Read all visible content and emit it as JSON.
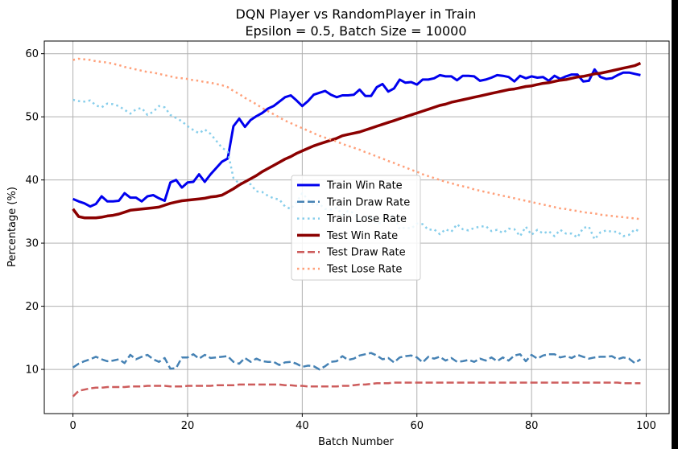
{
  "chart_data": {
    "type": "line",
    "title": "DQN Player vs RandomPlayer in Train",
    "subtitle": "Epsilon = 0.5, Batch Size = 10000",
    "xlabel": "Batch Number",
    "ylabel": "Percentage (%)",
    "xlim": [
      -5,
      104
    ],
    "ylim": [
      3,
      62
    ],
    "xticks": [
      0,
      20,
      40,
      60,
      80,
      100
    ],
    "yticks": [
      10,
      20,
      30,
      40,
      50,
      60
    ],
    "grid": true,
    "legend_position": "center",
    "x": [
      0,
      1,
      2,
      3,
      4,
      5,
      6,
      7,
      8,
      9,
      10,
      11,
      12,
      13,
      14,
      15,
      16,
      17,
      18,
      19,
      20,
      21,
      22,
      23,
      24,
      25,
      26,
      27,
      28,
      29,
      30,
      31,
      32,
      33,
      34,
      35,
      36,
      37,
      38,
      39,
      40,
      41,
      42,
      43,
      44,
      45,
      46,
      47,
      48,
      49,
      50,
      51,
      52,
      53,
      54,
      55,
      56,
      57,
      58,
      59,
      60,
      61,
      62,
      63,
      64,
      65,
      66,
      67,
      68,
      69,
      70,
      71,
      72,
      73,
      74,
      75,
      76,
      77,
      78,
      79,
      80,
      81,
      82,
      83,
      84,
      85,
      86,
      87,
      88,
      89,
      90,
      91,
      92,
      93,
      94,
      95,
      96,
      97,
      98,
      99
    ],
    "series": [
      {
        "name": "Train Win Rate",
        "color": "#0000ee",
        "style": "solid",
        "width": 3,
        "values": [
          37,
          36.6,
          36.3,
          35.8,
          36.2,
          37.4,
          36.6,
          36.6,
          36.7,
          37.9,
          37.2,
          37.2,
          36.6,
          37.4,
          37.6,
          37.1,
          36.7,
          39.6,
          40,
          38.8,
          39.6,
          39.7,
          40.9,
          39.7,
          40.9,
          41.9,
          42.9,
          43.4,
          48.5,
          49.7,
          48.4,
          49.5,
          50.1,
          50.6,
          51.3,
          51.7,
          52.4,
          53.1,
          53.4,
          52.6,
          51.7,
          52.5,
          53.5,
          53.8,
          54.1,
          53.5,
          53.1,
          53.4,
          53.4,
          53.5,
          54.3,
          53.3,
          53.3,
          54.7,
          55.2,
          54,
          54.5,
          55.9,
          55.4,
          55.5,
          55.1,
          55.9,
          55.9,
          56.1,
          56.6,
          56.4,
          56.4,
          55.8,
          56.5,
          56.5,
          56.4,
          55.7,
          55.9,
          56.2,
          56.6,
          56.5,
          56.3,
          55.6,
          56.5,
          56.1,
          56.4,
          56.2,
          56.3,
          55.7,
          56.5,
          56,
          56.4,
          56.7,
          56.7,
          55.6,
          55.7,
          57.5,
          56.3,
          56,
          56.1,
          56.6,
          57,
          57,
          56.8,
          56.6
        ]
      },
      {
        "name": "Train Draw Rate",
        "color": "#4682b4",
        "style": "dashed",
        "width": 2.5,
        "values": [
          10.3,
          10.9,
          11.3,
          11.6,
          12,
          11.6,
          11.3,
          11.4,
          11.6,
          11,
          12.3,
          11.6,
          12,
          12.3,
          11.6,
          11.2,
          11.8,
          10.1,
          10.2,
          11.9,
          11.9,
          12.4,
          11.7,
          12.3,
          11.8,
          11.9,
          12,
          12.1,
          11.2,
          10.9,
          11.8,
          11.2,
          11.7,
          11.3,
          11.2,
          11.2,
          10.7,
          11.1,
          11.2,
          10.9,
          10.4,
          10.6,
          10.5,
          10,
          10.5,
          11.2,
          11.3,
          12.1,
          11.5,
          11.7,
          12.2,
          12.4,
          12.6,
          12.2,
          11.6,
          11.8,
          11.1,
          11.9,
          12.1,
          12.2,
          11.9,
          11.1,
          12,
          11.7,
          12,
          11.4,
          11.8,
          11.2,
          11.3,
          11.5,
          11.2,
          11.7,
          11.4,
          11.9,
          11.3,
          11.9,
          11.4,
          12.2,
          12.4,
          11.3,
          12.3,
          11.7,
          12.2,
          12.4,
          12.4,
          11.9,
          12.1,
          11.8,
          12.3,
          12,
          11.7,
          11.9,
          12,
          12,
          12.1,
          11.6,
          11.9,
          11.7,
          11,
          11.6
        ]
      },
      {
        "name": "Train Lose Rate",
        "color": "#87ceeb",
        "style": "dotted",
        "width": 2.5,
        "values": [
          52.7,
          52.5,
          52.4,
          52.6,
          51.8,
          51.5,
          52.1,
          52,
          51.7,
          51.1,
          50.5,
          51.2,
          51.4,
          50.3,
          50.8,
          51.7,
          51.5,
          50.3,
          49.8,
          49.3,
          48.5,
          47.9,
          47.4,
          48,
          47.3,
          46.2,
          45.1,
          44.5,
          40.3,
          39.4,
          39.8,
          39.3,
          38.2,
          38.1,
          37.5,
          37.1,
          36.9,
          35.8,
          35.4,
          36.5,
          37.9,
          36.9,
          36,
          36.2,
          35.4,
          35.3,
          35.6,
          34.5,
          35.1,
          34.8,
          33.5,
          34.3,
          34.1,
          33.1,
          33.2,
          34.2,
          34.4,
          32.2,
          32.5,
          32.3,
          33.1,
          33,
          32.1,
          32.2,
          31.4,
          32.2,
          31.8,
          33,
          32.2,
          32,
          32.4,
          32.6,
          32.7,
          31.9,
          32.1,
          31.6,
          32.3,
          32.2,
          31.1,
          32.6,
          31.3,
          32.1,
          31.5,
          31.9,
          31.1,
          32.1,
          31.5,
          31.5,
          30.9,
          32.4,
          32.6,
          30.6,
          31.7,
          32,
          31.8,
          31.8,
          31.1,
          31.3,
          32.2,
          31.8
        ]
      },
      {
        "name": "Test Win Rate",
        "color": "#8b0000",
        "style": "solid",
        "width": 3.5,
        "values": [
          35.4,
          34.2,
          34,
          34,
          34,
          34.1,
          34.3,
          34.4,
          34.6,
          34.9,
          35.2,
          35.3,
          35.4,
          35.5,
          35.6,
          35.7,
          36,
          36.3,
          36.5,
          36.7,
          36.8,
          36.9,
          37,
          37.1,
          37.3,
          37.4,
          37.6,
          38.1,
          38.6,
          39.2,
          39.7,
          40.2,
          40.7,
          41.3,
          41.8,
          42.3,
          42.8,
          43.3,
          43.7,
          44.2,
          44.6,
          45,
          45.4,
          45.7,
          46,
          46.3,
          46.6,
          47,
          47.2,
          47.4,
          47.6,
          47.9,
          48.2,
          48.5,
          48.8,
          49.1,
          49.4,
          49.7,
          50,
          50.3,
          50.6,
          50.9,
          51.2,
          51.5,
          51.8,
          52,
          52.3,
          52.5,
          52.7,
          52.9,
          53.1,
          53.3,
          53.5,
          53.7,
          53.9,
          54.1,
          54.3,
          54.4,
          54.6,
          54.8,
          54.9,
          55.1,
          55.3,
          55.4,
          55.6,
          55.8,
          55.9,
          56.1,
          56.3,
          56.4,
          56.6,
          56.8,
          56.9,
          57.1,
          57.3,
          57.5,
          57.7,
          57.9,
          58.1,
          58.5
        ]
      },
      {
        "name": "Test Draw Rate",
        "color": "#cd5c5c",
        "style": "dashed",
        "width": 2.5,
        "values": [
          5.7,
          6.6,
          6.8,
          7,
          7.1,
          7.1,
          7.2,
          7.2,
          7.2,
          7.2,
          7.3,
          7.3,
          7.3,
          7.4,
          7.4,
          7.4,
          7.4,
          7.3,
          7.3,
          7.3,
          7.4,
          7.4,
          7.4,
          7.4,
          7.4,
          7.5,
          7.5,
          7.5,
          7.5,
          7.6,
          7.6,
          7.6,
          7.6,
          7.6,
          7.6,
          7.6,
          7.6,
          7.5,
          7.5,
          7.4,
          7.4,
          7.3,
          7.3,
          7.3,
          7.3,
          7.3,
          7.3,
          7.4,
          7.4,
          7.5,
          7.6,
          7.6,
          7.7,
          7.8,
          7.8,
          7.8,
          7.9,
          7.9,
          7.9,
          7.9,
          7.9,
          7.9,
          7.9,
          7.9,
          7.9,
          7.9,
          7.9,
          7.9,
          7.9,
          7.9,
          7.9,
          7.9,
          7.9,
          7.9,
          7.9,
          7.9,
          7.9,
          7.9,
          7.9,
          7.9,
          7.9,
          7.9,
          7.9,
          7.9,
          7.9,
          7.9,
          7.9,
          7.9,
          7.9,
          7.9,
          7.9,
          7.9,
          7.9,
          7.9,
          7.9,
          7.9,
          7.8,
          7.8,
          7.8,
          7.8
        ]
      },
      {
        "name": "Test Lose Rate",
        "color": "#ffa07a",
        "style": "dotted",
        "width": 2.5,
        "values": [
          59,
          59.2,
          59.1,
          59,
          58.8,
          58.7,
          58.6,
          58.4,
          58.2,
          57.9,
          57.7,
          57.5,
          57.3,
          57.1,
          57,
          56.8,
          56.6,
          56.4,
          56.2,
          56.1,
          56,
          55.8,
          55.7,
          55.5,
          55.4,
          55.2,
          55,
          54.7,
          54.1,
          53.6,
          53,
          52.5,
          52,
          51.4,
          50.9,
          50.4,
          49.9,
          49.4,
          49,
          48.6,
          48.2,
          47.8,
          47.4,
          47,
          46.7,
          46.4,
          46.1,
          45.7,
          45.4,
          45.1,
          44.8,
          44.4,
          44.1,
          43.7,
          43.4,
          43,
          42.7,
          42.3,
          42,
          41.6,
          41.3,
          40.9,
          40.6,
          40.3,
          40,
          39.7,
          39.5,
          39.2,
          39,
          38.8,
          38.5,
          38.3,
          38.1,
          37.9,
          37.7,
          37.5,
          37.3,
          37.1,
          36.9,
          36.7,
          36.5,
          36.3,
          36.1,
          35.9,
          35.7,
          35.5,
          35.4,
          35.2,
          35.1,
          34.9,
          34.8,
          34.7,
          34.5,
          34.4,
          34.3,
          34.2,
          34.1,
          34,
          33.9,
          33.8
        ]
      }
    ]
  }
}
